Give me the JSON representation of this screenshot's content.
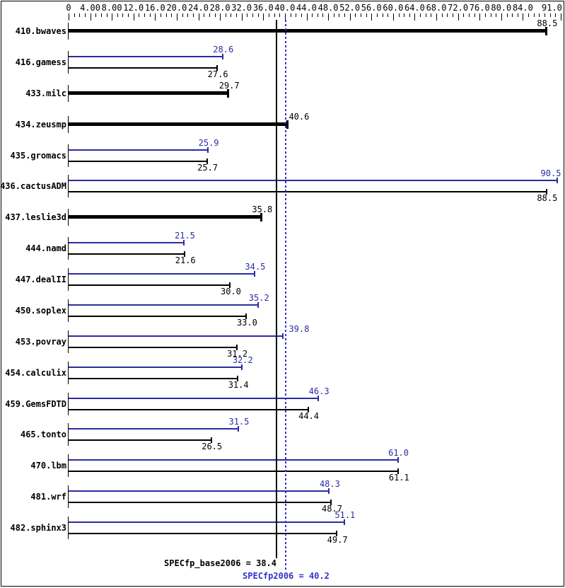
{
  "chart_data": {
    "type": "bar",
    "orientation": "horizontal",
    "xlim": [
      0,
      91
    ],
    "grid": false,
    "legend": "none",
    "colors": {
      "peak": "#2b2ba3",
      "base": "#000000",
      "peak_line": "#3333cc"
    },
    "axis_ticks": [
      {
        "value": 0,
        "label": "0"
      },
      {
        "value": 4,
        "label": "4.00"
      },
      {
        "value": 8,
        "label": "8.00"
      },
      {
        "value": 12,
        "label": "12.0"
      },
      {
        "value": 16,
        "label": "16.0"
      },
      {
        "value": 20,
        "label": "20.0"
      },
      {
        "value": 24,
        "label": "24.0"
      },
      {
        "value": 28,
        "label": "28.0"
      },
      {
        "value": 32,
        "label": "32.0"
      },
      {
        "value": 36,
        "label": "36.0"
      },
      {
        "value": 40,
        "label": "40.0"
      },
      {
        "value": 44,
        "label": "44.0"
      },
      {
        "value": 48,
        "label": "48.0"
      },
      {
        "value": 52,
        "label": "52.0"
      },
      {
        "value": 56,
        "label": "56.0"
      },
      {
        "value": 60,
        "label": "60.0"
      },
      {
        "value": 64,
        "label": "64.0"
      },
      {
        "value": 68,
        "label": "68.0"
      },
      {
        "value": 72,
        "label": "72.0"
      },
      {
        "value": 76,
        "label": "76.0"
      },
      {
        "value": 80,
        "label": "80.0"
      },
      {
        "value": 84,
        "label": "84.0"
      },
      {
        "value": 91,
        "label": "91.0"
      }
    ],
    "minor_tick_step": 1,
    "series": [
      {
        "name": "peak",
        "color": "#2b2ba3"
      },
      {
        "name": "base",
        "color": "#000000"
      }
    ],
    "benchmarks": [
      {
        "name": "410.bwaves",
        "single": true,
        "base": "88.5"
      },
      {
        "name": "416.gamess",
        "single": false,
        "peak": "28.6",
        "base": "27.6"
      },
      {
        "name": "433.milc",
        "single": true,
        "base": "29.7"
      },
      {
        "name": "434.zeusmp",
        "single": true,
        "base": "40.6"
      },
      {
        "name": "435.gromacs",
        "single": false,
        "peak": "25.9",
        "base": "25.7"
      },
      {
        "name": "436.cactusADM",
        "single": false,
        "peak": "90.5",
        "base": "88.5"
      },
      {
        "name": "437.leslie3d",
        "single": true,
        "base": "35.8"
      },
      {
        "name": "444.namd",
        "single": false,
        "peak": "21.5",
        "base": "21.6"
      },
      {
        "name": "447.dealII",
        "single": false,
        "peak": "34.5",
        "base": "30.0"
      },
      {
        "name": "450.soplex",
        "single": false,
        "peak": "35.2",
        "base": "33.0"
      },
      {
        "name": "453.povray",
        "single": false,
        "peak": "39.8",
        "base": "31.2"
      },
      {
        "name": "454.calculix",
        "single": false,
        "peak": "32.2",
        "base": "31.4"
      },
      {
        "name": "459.GemsFDTD",
        "single": false,
        "peak": "46.3",
        "base": "44.4"
      },
      {
        "name": "465.tonto",
        "single": false,
        "peak": "31.5",
        "base": "26.5"
      },
      {
        "name": "470.lbm",
        "single": false,
        "peak": "61.0",
        "base": "61.1"
      },
      {
        "name": "481.wrf",
        "single": false,
        "peak": "48.3",
        "base": "48.7"
      },
      {
        "name": "482.sphinx3",
        "single": false,
        "peak": "51.1",
        "base": "49.7"
      }
    ],
    "reference_lines": [
      {
        "name": "base_mean",
        "label": "SPECfp_base2006 = 38.4",
        "value": 38.4,
        "style": "solid",
        "color": "#000000"
      },
      {
        "name": "peak_mean",
        "label": "SPECfp2006 = 40.2",
        "value": 40.2,
        "style": "dotted",
        "color": "#3333cc"
      }
    ]
  }
}
